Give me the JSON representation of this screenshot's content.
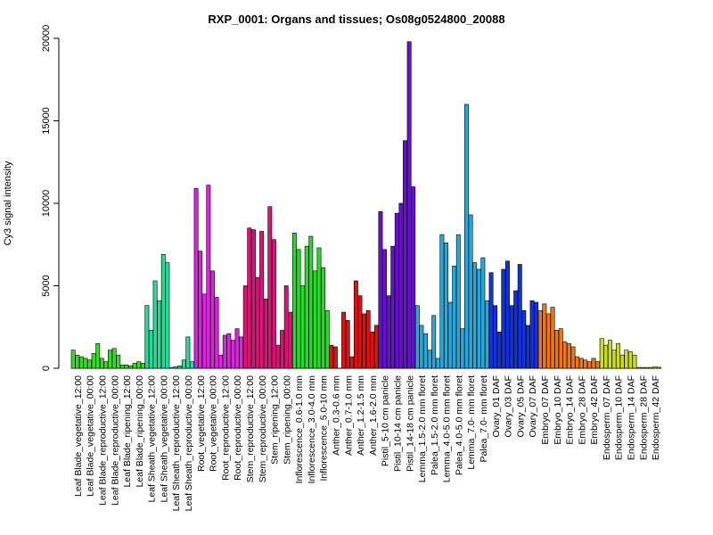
{
  "chart_data": {
    "type": "bar",
    "title": "RXP_0001: Organs and tissues; Os08g0524800_20088",
    "ylabel": "Cy3 signal intensity",
    "xlabel": "",
    "ylim": [
      0,
      20000
    ],
    "yticks": [
      0,
      5000,
      10000,
      15000,
      20000
    ],
    "grid": false,
    "legend": "none",
    "categories": [
      "Leaf Blade_vegetative_12:00",
      "Leaf Blade_vegetative_00:00",
      "Leaf Blade_reproductive_12:00",
      "Leaf Blade_reproductive_00:00",
      "Leaf Blade_ripening_12:00",
      "Leaf Blade_ripening_00:00",
      "Leaf Sheath_vegetative_12:00",
      "Leaf Sheath_vegetative_00:00",
      "Leaf Sheath_reproductive_12:00",
      "Leaf Sheath_reproductive_00:00",
      "Root_vegetative_12:00",
      "Root_vegetative_00:00",
      "Root_reproductive_12:00",
      "Root_reproductive_00:00",
      "Stem_reproductive_12:00",
      "Stem_reproductive_00:00",
      "Stem_ripening_12:00",
      "Stem_ripening_00:00",
      "Inflorescence_0.6-1.0 mm",
      "Inflorescence_3.0-4.0 mm",
      "Inflorescence_5.0-10 mm",
      "Anther_0.3-0.6 mm",
      "Anther_0.7-1.0 mm",
      "Anther_1.2-1.5 mm",
      "Anther_1.6-2.0 mm",
      "Pistil_5-10 cm panicle",
      "Pistil_10-14 cm panicle",
      "Pistil_14-18 cm panicle",
      "Lemma_1.5-2.0 mm floret",
      "Palea_1.5-2.0 mm floret",
      "Lemma_4.0-5.0 mm floret",
      "Palea_4.0-5.0 mm floret",
      "Lemma_7.0- mm floret",
      "Palea_7.0- mm floret",
      "Ovary_01 DAF",
      "Ovary_03 DAF",
      "Ovary_05 DAF",
      "Ovary_07 DAF",
      "Embryo_07 DAF",
      "Embryo_10 DAF",
      "Embryo_14 DAF",
      "Embryo_28 DAF",
      "Embryo_42 DAF",
      "Endosperm_07 DAF",
      "Endosperm_10 DAF",
      "Endosperm_14 DAF",
      "Endosperm_28 DAF",
      "Endosperm_42 DAF"
    ],
    "group_colors": [
      "#33dd22",
      "#33dd22",
      "#33dd22",
      "#33dd22",
      "#33dd22",
      "#33dd22",
      "#22dd99",
      "#22dd99",
      "#22dd99",
      "#22dd99",
      "#dd22dd",
      "#dd22dd",
      "#dd22dd",
      "#dd22dd",
      "#dd1177",
      "#dd1177",
      "#dd1177",
      "#dd1177",
      "#22dd22",
      "#22dd22",
      "#22dd22",
      "#dd1111",
      "#dd1111",
      "#dd1111",
      "#dd1111",
      "#6611cc",
      "#6611cc",
      "#6611cc",
      "#22aadd",
      "#22aadd",
      "#22aadd",
      "#22aadd",
      "#22aadd",
      "#22aadd",
      "#1133dd",
      "#1133dd",
      "#1133dd",
      "#1133dd",
      "#ee7711",
      "#ee7711",
      "#ee7711",
      "#ee7711",
      "#ee7711",
      "#ccdd11",
      "#ccdd11",
      "#ccdd11",
      "#ccdd11",
      "#ccdd11"
    ],
    "series_values": [
      [
        1100,
        800,
        700
      ],
      [
        600,
        500,
        900
      ],
      [
        1500,
        600,
        400
      ],
      [
        1100,
        1200,
        800
      ],
      [
        200,
        200,
        150
      ],
      [
        300,
        400,
        300
      ],
      [
        3800,
        2300,
        5300
      ],
      [
        4100,
        6900,
        6400
      ],
      [
        50,
        100,
        150
      ],
      [
        500,
        1900,
        400
      ],
      [
        10900,
        7100,
        4500
      ],
      [
        11100,
        5900,
        4300
      ],
      [
        800,
        2000,
        2100
      ],
      [
        1700,
        2400,
        1900
      ],
      [
        5000,
        8500,
        8400
      ],
      [
        5500,
        8300,
        4200
      ],
      [
        9800,
        7800,
        1400
      ],
      [
        2300,
        5000,
        3400
      ],
      [
        8200,
        7200,
        5000
      ],
      [
        7400,
        8000,
        5900
      ],
      [
        7300,
        6100,
        3500
      ],
      [
        1400,
        1300,
        0
      ],
      [
        3400,
        2900,
        700
      ],
      [
        5300,
        4400,
        3300
      ],
      [
        3500,
        2200,
        2600
      ],
      [
        9500,
        7200,
        4400
      ],
      [
        7400,
        9400,
        10000
      ],
      [
        13800,
        19800,
        11000
      ],
      [
        3800,
        2600,
        2100
      ],
      [
        1100,
        3200,
        600
      ],
      [
        8100,
        7600,
        4000
      ],
      [
        6200,
        8100,
        2400
      ],
      [
        16000,
        9300,
        6400
      ],
      [
        6000,
        6700,
        4100
      ],
      [
        5800,
        3800,
        2200
      ],
      [
        6000,
        6500,
        3800
      ],
      [
        4700,
        6300,
        3500
      ],
      [
        2600,
        4100,
        4000
      ],
      [
        3500,
        3900,
        3300
      ],
      [
        3700,
        2300,
        2400
      ],
      [
        1600,
        1500,
        1300
      ],
      [
        700,
        600,
        500
      ],
      [
        400,
        600,
        400
      ],
      [
        1800,
        1400,
        1700
      ],
      [
        1100,
        1500,
        800
      ],
      [
        1100,
        1000,
        800
      ],
      [
        50,
        50,
        50
      ],
      [
        50,
        80,
        60
      ]
    ]
  }
}
